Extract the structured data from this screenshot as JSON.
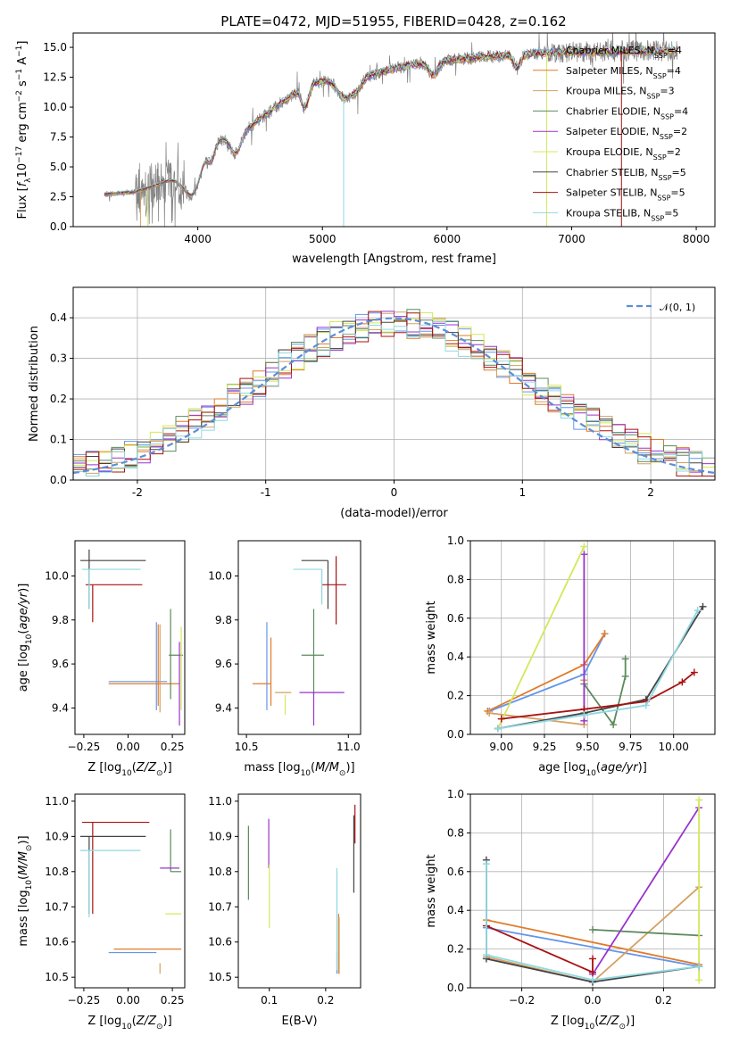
{
  "figure_title": "PLATE=0472, MJD=51955, FIBERID=0428, z=0.162",
  "colors": [
    "#6495ed",
    "#e07b2a",
    "#d4a060",
    "#5c8a5c",
    "#9933cc",
    "#d4e85a",
    "#444444",
    "#aa1111",
    "#8fd8e0"
  ],
  "model_names": [
    "Chabrier MILES, N_SSP=4",
    "Salpeter MILES, N_SSP=4",
    "Kroupa MILES, N_SSP=3",
    "Chabrier ELODIE, N_SSP=4",
    "Salpeter ELODIE, N_SSP=2",
    "Kroupa ELODIE, N_SSP=2",
    "Chabrier STELIB, N_SSP=5",
    "Salpeter STELIB, N_SSP=5",
    "Kroupa STELIB, N_SSP=5"
  ],
  "chart_data": [
    {
      "id": "spectrum",
      "type": "line",
      "xlabel": "wavelength [Angstrom, rest frame]",
      "ylabel": "Flux [f_λ 10^-17 erg cm^-2 s^-1 A^-1]",
      "xlim": [
        3000,
        8150
      ],
      "ylim": [
        0,
        16.2
      ],
      "xticks": [
        4000,
        5000,
        6000,
        7000,
        8000
      ],
      "yticks": [
        0.0,
        2.5,
        5.0,
        7.5,
        10.0,
        12.5,
        15.0
      ],
      "data_color": "#808080",
      "continuum": [
        [
          3250,
          2.7
        ],
        [
          3500,
          2.9
        ],
        [
          3700,
          3.6
        ],
        [
          3850,
          4.3
        ],
        [
          4000,
          6.2
        ],
        [
          4150,
          7.2
        ],
        [
          4300,
          7.6
        ],
        [
          4450,
          8.6
        ],
        [
          4600,
          9.8
        ],
        [
          4750,
          11.0
        ],
        [
          4900,
          12.0
        ],
        [
          5100,
          12.2
        ],
        [
          5300,
          12.4
        ],
        [
          5500,
          13.0
        ],
        [
          5700,
          13.5
        ],
        [
          6000,
          13.9
        ],
        [
          6300,
          14.2
        ],
        [
          6600,
          14.4
        ],
        [
          6900,
          14.6
        ],
        [
          7200,
          14.6
        ],
        [
          7500,
          14.7
        ],
        [
          7700,
          14.7
        ],
        [
          7850,
          14.8
        ]
      ],
      "legend": [
        "Chabrier MILES, N_SSP=4",
        "Salpeter MILES, N_SSP=4",
        "Kroupa MILES, N_SSP=3",
        "Chabrier ELODIE, N_SSP=4",
        "Salpeter ELODIE, N_SSP=2",
        "Kroupa ELODIE, N_SSP=2",
        "Chabrier STELIB, N_SSP=5",
        "Salpeter STELIB, N_SSP=5",
        "Kroupa STELIB, N_SSP=5"
      ]
    },
    {
      "id": "residuals",
      "type": "histogram",
      "xlabel": "(data-model)/error",
      "ylabel": "Normed distribution",
      "xlim": [
        -2.5,
        2.5
      ],
      "ylim": [
        0,
        0.475
      ],
      "xticks": [
        -2,
        -1,
        0,
        1,
        2
      ],
      "yticks": [
        0.0,
        0.1,
        0.2,
        0.3,
        0.4
      ],
      "legend": [
        "𝒩(0, 1)"
      ],
      "grid": true
    },
    {
      "id": "age_vs_Z",
      "type": "errorbar",
      "xlabel": "Z [log10(Z/Z_sun)]",
      "ylabel": "age [log10(age/yr)]",
      "xlim": [
        -0.3,
        0.32
      ],
      "ylim": [
        9.28,
        10.16
      ],
      "xticks": [
        -0.25,
        0.0,
        0.25
      ],
      "xtick_labels": [
        "−0.25",
        "0.00",
        "0.25"
      ],
      "yticks": [
        9.4,
        9.6,
        9.8,
        10.0
      ],
      "points": [
        {
          "c": 0,
          "x": 0.16,
          "y": 9.52,
          "xe": [
            0.27,
            0.06
          ],
          "ye": [
            0.13,
            0.27
          ]
        },
        {
          "c": 1,
          "x": 0.17,
          "y": 9.51,
          "xe": [
            0.28,
            0.12
          ],
          "ye": [
            0.1,
            0.27
          ]
        },
        {
          "c": 2,
          "x": 0.18,
          "y": 9.62,
          "xe": [
            0.0,
            0.0
          ],
          "ye": [
            0.24,
            0.16
          ]
        },
        {
          "c": 3,
          "x": 0.24,
          "y": 9.64,
          "xe": [
            0.01,
            0.07
          ],
          "ye": [
            0.2,
            0.21
          ]
        },
        {
          "c": 4,
          "x": 0.29,
          "y": 9.53,
          "xe": [
            0.0,
            0.0
          ],
          "ye": [
            0.21,
            0.17
          ]
        },
        {
          "c": 5,
          "x": 0.3,
          "y": 9.56,
          "xe": [
            0.0,
            0.0
          ],
          "ye": [
            0.17,
            0.21
          ]
        },
        {
          "c": 6,
          "x": -0.22,
          "y": 10.07,
          "xe": [
            0.05,
            0.32
          ],
          "ye": [
            0.22,
            0.05
          ]
        },
        {
          "c": 7,
          "x": -0.2,
          "y": 9.96,
          "xe": [
            0.04,
            0.28
          ],
          "ye": [
            0.17,
            0.0
          ]
        },
        {
          "c": 8,
          "x": -0.22,
          "y": 10.03,
          "xe": [
            0.04,
            0.29
          ],
          "ye": [
            0.18,
            0.0
          ]
        }
      ]
    },
    {
      "id": "age_vs_mass",
      "type": "errorbar",
      "xlabel": "mass [log10(M/M_sun)]",
      "ylabel": "",
      "xlim": [
        10.46,
        11.06
      ],
      "ylim": [
        9.28,
        10.16
      ],
      "xticks": [
        10.5,
        11.0
      ],
      "xtick_labels": [
        "10.5",
        "11.0"
      ],
      "yticks": [
        9.4,
        9.6,
        9.8,
        10.0
      ],
      "points": [
        {
          "c": 0,
          "x": 10.6,
          "y": 9.52,
          "xe": [
            0.0,
            0.0
          ],
          "ye": [
            0.13,
            0.27
          ]
        },
        {
          "c": 1,
          "x": 10.62,
          "y": 9.51,
          "xe": [
            0.09,
            0.0
          ],
          "ye": [
            0.1,
            0.21
          ]
        },
        {
          "c": 2,
          "x": 10.72,
          "y": 9.47,
          "xe": [
            0.08,
            0.0
          ],
          "ye": [
            0.0,
            0.0
          ]
        },
        {
          "c": 3,
          "x": 10.83,
          "y": 9.64,
          "xe": [
            0.06,
            0.05
          ],
          "ye": [
            0.18,
            0.21
          ]
        },
        {
          "c": 4,
          "x": 10.83,
          "y": 9.47,
          "xe": [
            0.07,
            0.15
          ],
          "ye": [
            0.15,
            0.0
          ]
        },
        {
          "c": 5,
          "x": 10.69,
          "y": 9.46,
          "xe": [
            0.0,
            0.0
          ],
          "ye": [
            0.09,
            0.0
          ]
        },
        {
          "c": 6,
          "x": 10.9,
          "y": 10.07,
          "xe": [
            0.13,
            0.0
          ],
          "ye": [
            0.22,
            0.0
          ]
        },
        {
          "c": 7,
          "x": 10.94,
          "y": 9.96,
          "xe": [
            0.07,
            0.05
          ],
          "ye": [
            0.18,
            0.13
          ]
        },
        {
          "c": 8,
          "x": 10.87,
          "y": 10.03,
          "xe": [
            0.14,
            0.0
          ],
          "ye": [
            0.16,
            0.0
          ]
        }
      ]
    },
    {
      "id": "weight_vs_age",
      "type": "line",
      "xlabel": "age [log10(age/yr)]",
      "ylabel": "mass weight",
      "xlim": [
        8.82,
        10.24
      ],
      "ylim": [
        0,
        1.0
      ],
      "xticks": [
        9.0,
        9.25,
        9.5,
        9.75,
        10.0
      ],
      "xtick_labels": [
        "9.00",
        "9.25",
        "9.50",
        "9.75",
        "10.00"
      ],
      "yticks": [
        0.0,
        0.2,
        0.4,
        0.6,
        0.8,
        1.0
      ],
      "grid": true,
      "series": [
        {
          "c": 0,
          "points": [
            [
              8.93,
              0.12
            ],
            [
              9.48,
              0.31
            ],
            [
              9.6,
              0.52
            ]
          ]
        },
        {
          "c": 1,
          "points": [
            [
              8.92,
              0.12
            ],
            [
              9.48,
              0.36
            ],
            [
              9.6,
              0.52
            ]
          ]
        },
        {
          "c": 2,
          "points": [
            [
              8.93,
              0.11
            ],
            [
              9.48,
              0.05
            ],
            [
              9.48,
              0.28
            ]
          ]
        },
        {
          "c": 3,
          "points": [
            [
              9.48,
              0.26
            ],
            [
              9.65,
              0.05
            ],
            [
              9.72,
              0.3
            ],
            [
              9.72,
              0.39
            ]
          ]
        },
        {
          "c": 4,
          "points": [
            [
              9.48,
              0.07
            ],
            [
              9.48,
              0.93
            ]
          ]
        },
        {
          "c": 5,
          "points": [
            [
              8.98,
              0.03
            ],
            [
              9.48,
              0.97
            ]
          ]
        },
        {
          "c": 6,
          "points": [
            [
              8.98,
              0.03
            ],
            [
              9.48,
              0.11
            ],
            [
              9.84,
              0.18
            ],
            [
              10.17,
              0.66
            ]
          ]
        },
        {
          "c": 7,
          "points": [
            [
              9.0,
              0.08
            ],
            [
              9.48,
              0.13
            ],
            [
              9.84,
              0.17
            ],
            [
              10.05,
              0.27
            ],
            [
              10.12,
              0.32
            ]
          ]
        },
        {
          "c": 8,
          "points": [
            [
              8.98,
              0.03
            ],
            [
              9.48,
              0.1
            ],
            [
              9.84,
              0.15
            ],
            [
              10.14,
              0.64
            ]
          ]
        }
      ]
    },
    {
      "id": "mass_vs_Z",
      "type": "errorbar",
      "xlabel": "Z [log10(Z/Z_sun)]",
      "ylabel": "mass [log10(M/M_sun)]",
      "xlim": [
        -0.3,
        0.32
      ],
      "ylim": [
        10.47,
        11.02
      ],
      "xticks": [
        -0.25,
        0.0,
        0.25
      ],
      "xtick_labels": [
        "−0.25",
        "0.00",
        "0.25"
      ],
      "yticks": [
        10.5,
        10.6,
        10.7,
        10.8,
        10.9,
        11.0
      ],
      "points": [
        {
          "c": 0,
          "x": 0.16,
          "y": 10.57,
          "xe": [
            0.27,
            0.0
          ],
          "ye": [
            0.0,
            0.0
          ]
        },
        {
          "c": 1,
          "x": 0.17,
          "y": 10.58,
          "xe": [
            0.25,
            0.13
          ],
          "ye": [
            0.0,
            0.0
          ]
        },
        {
          "c": 2,
          "x": 0.18,
          "y": 10.54,
          "xe": [
            0.0,
            0.0
          ],
          "ye": [
            0.03,
            0.0
          ]
        },
        {
          "c": 3,
          "x": 0.24,
          "y": 10.8,
          "xe": [
            0.0,
            0.06
          ],
          "ye": [
            0.0,
            0.12
          ]
        },
        {
          "c": 4,
          "x": 0.22,
          "y": 10.81,
          "xe": [
            0.04,
            0.07
          ],
          "ye": [
            0.0,
            0.0
          ]
        },
        {
          "c": 5,
          "x": 0.28,
          "y": 10.68,
          "xe": [
            0.07,
            0.02
          ],
          "ye": [
            0.0,
            0.0
          ]
        },
        {
          "c": 6,
          "x": -0.22,
          "y": 10.9,
          "xe": [
            0.05,
            0.32
          ],
          "ye": [
            0.22,
            0.0
          ]
        },
        {
          "c": 7,
          "x": -0.2,
          "y": 10.94,
          "xe": [
            0.06,
            0.32
          ],
          "ye": [
            0.26,
            0.0
          ]
        },
        {
          "c": 8,
          "x": -0.22,
          "y": 10.86,
          "xe": [
            0.05,
            0.29
          ],
          "ye": [
            0.19,
            0.0
          ]
        }
      ]
    },
    {
      "id": "mass_vs_EBV",
      "type": "errorbar",
      "xlabel": "E(B-V)",
      "ylabel": "",
      "xlim": [
        0.045,
        0.262
      ],
      "ylim": [
        10.47,
        11.02
      ],
      "xticks": [
        0.1,
        0.2
      ],
      "xtick_labels": [
        "0.1",
        "0.2"
      ],
      "yticks": [
        10.5,
        10.6,
        10.7,
        10.8,
        10.9,
        11.0
      ],
      "points": [
        {
          "c": 0,
          "x": 0.22,
          "y": 10.57,
          "xe": [
            0.0,
            0.0
          ],
          "ye": [
            0.06,
            0.0
          ]
        },
        {
          "c": 1,
          "x": 0.223,
          "y": 10.58,
          "xe": [
            0.0,
            0.0
          ],
          "ye": [
            0.07,
            0.1
          ]
        },
        {
          "c": 2,
          "x": 0.224,
          "y": 10.55,
          "xe": [
            0.0,
            0.0
          ],
          "ye": [
            0.04,
            0.12
          ]
        },
        {
          "c": 3,
          "x": 0.063,
          "y": 10.8,
          "xe": [
            0.0,
            0.0
          ],
          "ye": [
            0.08,
            0.13
          ]
        },
        {
          "c": 4,
          "x": 0.099,
          "y": 10.81,
          "xe": [
            0.0,
            0.0
          ],
          "ye": [
            0.0,
            0.14
          ]
        },
        {
          "c": 5,
          "x": 0.1,
          "y": 10.72,
          "xe": [
            0.0,
            0.0
          ],
          "ye": [
            0.08,
            0.1
          ]
        },
        {
          "c": 6,
          "x": 0.25,
          "y": 10.9,
          "xe": [
            0.0,
            0.0
          ],
          "ye": [
            0.16,
            0.06
          ]
        },
        {
          "c": 7,
          "x": 0.252,
          "y": 10.94,
          "xe": [
            0.0,
            0.0
          ],
          "ye": [
            0.06,
            0.05
          ]
        },
        {
          "c": 8,
          "x": 0.22,
          "y": 10.66,
          "xe": [
            0.0,
            0.0
          ],
          "ye": [
            0.14,
            0.15
          ]
        }
      ]
    },
    {
      "id": "weight_vs_Z",
      "type": "line",
      "xlabel": "Z [log10(Z/Z_sun)]",
      "ylabel": "mass weight",
      "xlim": [
        -0.345,
        0.345
      ],
      "ylim": [
        0,
        1.0
      ],
      "xticks": [
        -0.2,
        0.0,
        0.2
      ],
      "xtick_labels": [
        "−0.2",
        "0.0",
        "0.2"
      ],
      "yticks": [
        0.0,
        0.2,
        0.4,
        0.6,
        0.8,
        1.0
      ],
      "grid": true,
      "series": [
        {
          "c": 0,
          "points": [
            [
              -0.3,
              0.31
            ],
            [
              0.3,
              0.11
            ]
          ]
        },
        {
          "c": 1,
          "points": [
            [
              -0.3,
              0.35
            ],
            [
              0.3,
              0.12
            ]
          ]
        },
        {
          "c": 2,
          "points": [
            [
              -0.3,
              0.16
            ],
            [
              0.0,
              0.03
            ],
            [
              0.3,
              0.52
            ]
          ]
        },
        {
          "c": 3,
          "points": [
            [
              0.0,
              0.3
            ],
            [
              0.3,
              0.27
            ]
          ]
        },
        {
          "c": 4,
          "points": [
            [
              0.0,
              0.07
            ],
            [
              0.3,
              0.93
            ]
          ]
        },
        {
          "c": 5,
          "points": [
            [
              0.3,
              0.97
            ],
            [
              0.3,
              0.04
            ]
          ]
        },
        {
          "c": 6,
          "points": [
            [
              -0.3,
              0.66
            ],
            [
              -0.3,
              0.15
            ],
            [
              0.0,
              0.03
            ],
            [
              0.3,
              0.11
            ]
          ]
        },
        {
          "c": 7,
          "points": [
            [
              -0.3,
              0.32
            ],
            [
              0.0,
              0.08
            ],
            [
              0.0,
              0.15
            ]
          ]
        },
        {
          "c": 8,
          "points": [
            [
              -0.3,
              0.64
            ],
            [
              -0.3,
              0.17
            ],
            [
              0.0,
              0.04
            ],
            [
              0.3,
              0.11
            ]
          ]
        }
      ]
    }
  ]
}
